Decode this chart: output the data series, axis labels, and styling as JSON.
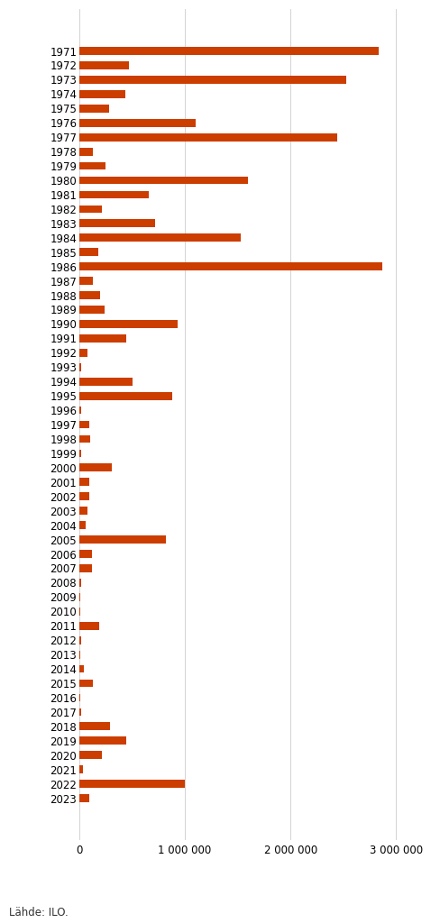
{
  "years": [
    1971,
    1972,
    1973,
    1974,
    1975,
    1976,
    1977,
    1978,
    1979,
    1980,
    1981,
    1982,
    1983,
    1984,
    1985,
    1986,
    1987,
    1988,
    1989,
    1990,
    1991,
    1992,
    1993,
    1994,
    1995,
    1996,
    1997,
    1998,
    1999,
    2000,
    2001,
    2002,
    2003,
    2004,
    2005,
    2006,
    2007,
    2008,
    2009,
    2010,
    2011,
    2012,
    2013,
    2014,
    2015,
    2016,
    2017,
    2018,
    2019,
    2020,
    2021,
    2022,
    2023
  ],
  "values": [
    2840000,
    473000,
    2530000,
    435000,
    284000,
    1100000,
    2440000,
    132000,
    248000,
    1600000,
    660000,
    215000,
    720000,
    1530000,
    175000,
    2870000,
    130000,
    195000,
    240000,
    935000,
    440000,
    76000,
    17000,
    500000,
    880000,
    20000,
    95000,
    100000,
    18000,
    310000,
    95000,
    95000,
    80000,
    60000,
    820000,
    120000,
    120000,
    15000,
    12000,
    12000,
    185000,
    18000,
    12000,
    40000,
    130000,
    10000,
    20000,
    290000,
    440000,
    210000,
    35000,
    1000000,
    90000
  ],
  "bar_color": "#cc3d00",
  "background_color": "#ffffff",
  "xlim": [
    0,
    3300000
  ],
  "xticks": [
    0,
    1000000,
    2000000,
    3000000
  ],
  "xtick_labels": [
    "0",
    "1 000 000",
    "2 000 000",
    "3 000 000"
  ],
  "source_text": "Lähde: ILO.",
  "source_fontsize": 8.5,
  "tick_fontsize": 8.5,
  "bar_height": 0.55
}
